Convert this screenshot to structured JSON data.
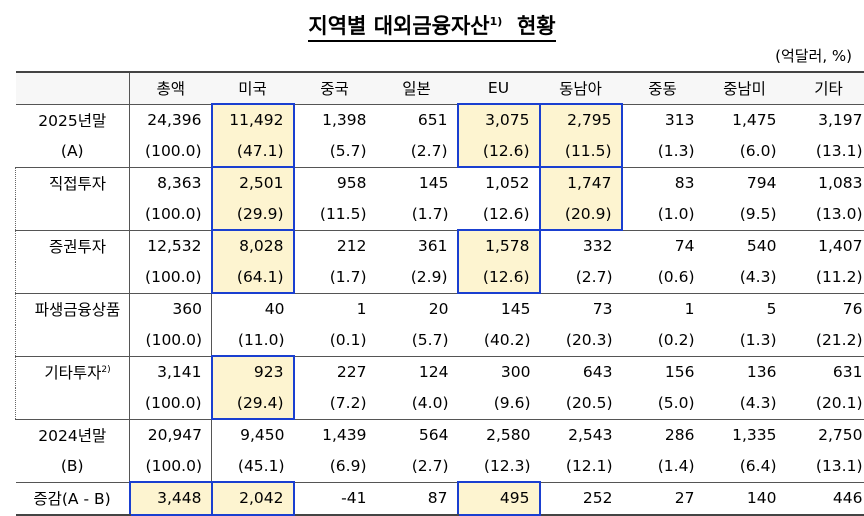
{
  "title": {
    "text": "지역별 대외금융자산",
    "footnote": "1)",
    "suffix": "현황"
  },
  "unit": "(억달러, %)",
  "columns": [
    "총액",
    "미국",
    "중국",
    "일본",
    "EU",
    "동남아",
    "중동",
    "중남미",
    "기타"
  ],
  "rows": [
    {
      "label": "2025년말",
      "sub": "(A)",
      "values": [
        "24,396",
        "11,492",
        "1,398",
        "651",
        "3,075",
        "2,795",
        "313",
        "1,475",
        "3,197"
      ],
      "shares": [
        "(100.0)",
        "(47.1)",
        "(5.7)",
        "(2.7)",
        "(12.6)",
        "(11.5)",
        "(1.3)",
        "(6.0)",
        "(13.1)"
      ]
    },
    {
      "label": "직접투자",
      "sub": "",
      "values": [
        "8,363",
        "2,501",
        "958",
        "145",
        "1,052",
        "1,747",
        "83",
        "794",
        "1,083"
      ],
      "shares": [
        "(100.0)",
        "(29.9)",
        "(11.5)",
        "(1.7)",
        "(12.6)",
        "(20.9)",
        "(1.0)",
        "(9.5)",
        "(13.0)"
      ]
    },
    {
      "label": "증권투자",
      "sub": "",
      "values": [
        "12,532",
        "8,028",
        "212",
        "361",
        "1,578",
        "332",
        "74",
        "540",
        "1,407"
      ],
      "shares": [
        "(100.0)",
        "(64.1)",
        "(1.7)",
        "(2.9)",
        "(12.6)",
        "(2.7)",
        "(0.6)",
        "(4.3)",
        "(11.2)"
      ]
    },
    {
      "label": "파생금융상품",
      "sub": "",
      "values": [
        "360",
        "40",
        "1",
        "20",
        "145",
        "73",
        "1",
        "5",
        "76"
      ],
      "shares": [
        "(100.0)",
        "(11.0)",
        "(0.1)",
        "(5.7)",
        "(40.2)",
        "(20.3)",
        "(0.2)",
        "(1.3)",
        "(21.2)"
      ]
    },
    {
      "label": "기타투자",
      "footnote": "2)",
      "sub": "",
      "values": [
        "3,141",
        "923",
        "227",
        "124",
        "300",
        "643",
        "156",
        "136",
        "631"
      ],
      "shares": [
        "(100.0)",
        "(29.4)",
        "(7.2)",
        "(4.0)",
        "(9.6)",
        "(20.5)",
        "(5.0)",
        "(4.3)",
        "(20.1)"
      ]
    },
    {
      "label": "2024년말",
      "sub": "(B)",
      "values": [
        "20,947",
        "9,450",
        "1,439",
        "564",
        "2,580",
        "2,543",
        "286",
        "1,335",
        "2,750"
      ],
      "shares": [
        "(100.0)",
        "(45.1)",
        "(6.9)",
        "(2.7)",
        "(12.3)",
        "(12.1)",
        "(1.4)",
        "(6.4)",
        "(13.1)"
      ]
    }
  ],
  "change_row": {
    "label": "증감(A - B)",
    "values": [
      "3,448",
      "2,042",
      "-41",
      "87",
      "495",
      "252",
      "27",
      "140",
      "446"
    ]
  },
  "highlight_color": "#1a3fd0"
}
